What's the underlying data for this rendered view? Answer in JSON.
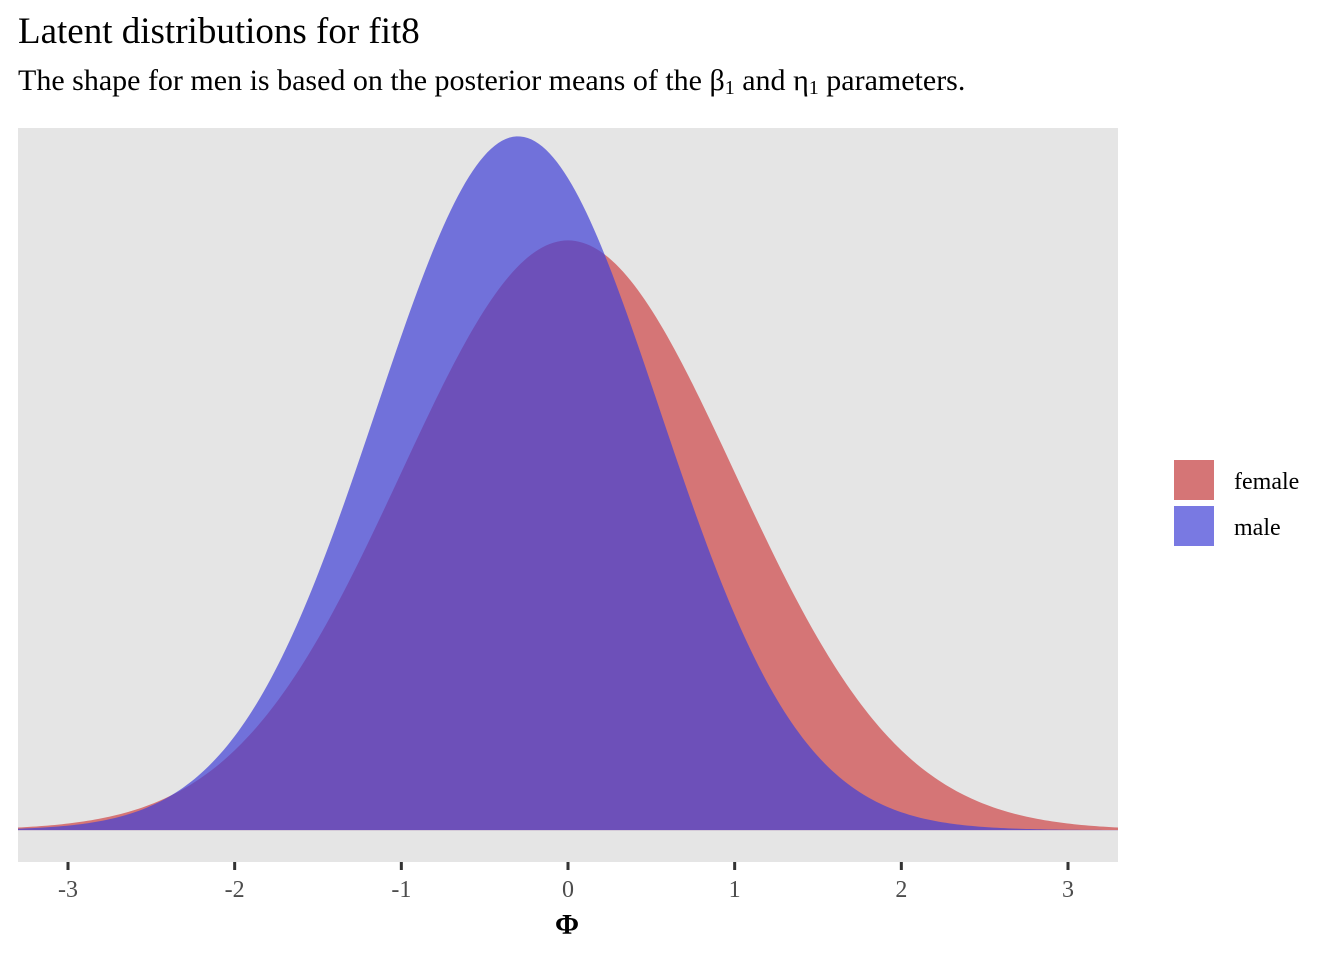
{
  "chart_data": {
    "type": "area",
    "title": "Latent distributions for fit8",
    "subtitle": {
      "before_beta": "The shape for men is based on the posterior means of the ",
      "beta": "β",
      "beta_sub": "1",
      "middle": " and ",
      "eta": "η",
      "eta_sub": "1",
      "after": " parameters."
    },
    "xlabel": "Φ",
    "ylabel": "",
    "xlim": [
      -3.3,
      3.3
    ],
    "ylim": [
      -0.0216,
      0.475
    ],
    "x_ticks": [
      -3,
      -2,
      -1,
      0,
      1,
      2,
      3
    ],
    "x_tick_labels": [
      "-3",
      "-2",
      "-1",
      "0",
      "1",
      "2",
      "3"
    ],
    "y_axis_visible": false,
    "grid": false,
    "panel_background": "#e5e5e5",
    "legend_position": "right",
    "series": [
      {
        "name": "female",
        "distribution": "normal",
        "mean": 0,
        "sd": 1,
        "fill": "#d57576",
        "opacity": 1.0
      },
      {
        "name": "male",
        "distribution": "normal",
        "mean": -0.3,
        "sd": 0.85,
        "fill": "#4040d6",
        "opacity": 0.7
      }
    ]
  }
}
